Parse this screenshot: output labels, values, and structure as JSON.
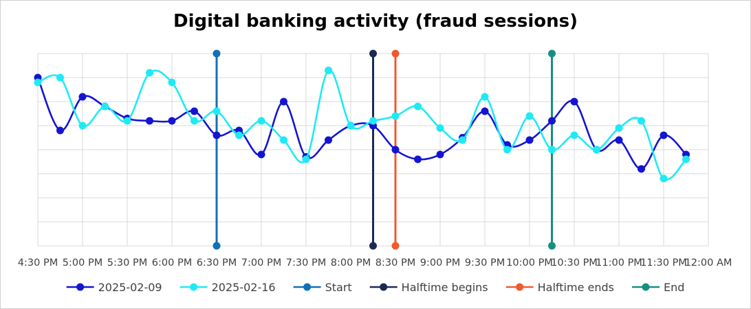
{
  "chart_data": {
    "type": "line",
    "title": "Digital banking activity (fraud sessions)",
    "xlabel": "",
    "ylabel": "",
    "ylim": [
      0,
      8
    ],
    "grid": true,
    "legend_position": "bottom",
    "x_tick_labels": [
      "4:30 PM",
      "5:00 PM",
      "5:30 PM",
      "6:00 PM",
      "6:30 PM",
      "7:00 PM",
      "7:30 PM",
      "8:00 PM",
      "8:30 PM",
      "9:00 PM",
      "9:30 PM",
      "10:00 PM",
      "10:30 PM",
      "11:00 PM",
      "11:30 PM",
      "12:00 AM"
    ],
    "x_start": "4:30 PM",
    "x_step_minutes": 15,
    "series": [
      {
        "name": "2025-02-09",
        "color": "#1414d2",
        "values": [
          7.0,
          4.8,
          6.2,
          5.8,
          5.3,
          5.2,
          5.2,
          5.6,
          4.6,
          4.8,
          3.8,
          6.0,
          3.7,
          4.4,
          5.0,
          5.0,
          4.0,
          3.6,
          3.8,
          4.5,
          5.6,
          4.2,
          4.4,
          5.2,
          6.0,
          4.0,
          4.4,
          3.2,
          4.6,
          3.8
        ]
      },
      {
        "name": "2025-02-16",
        "color": "#1eeaf5",
        "values": [
          6.8,
          7.0,
          5.0,
          5.8,
          5.2,
          7.2,
          6.8,
          5.2,
          5.6,
          4.6,
          5.2,
          4.4,
          3.6,
          7.3,
          5.0,
          5.2,
          5.4,
          5.8,
          4.9,
          4.4,
          6.2,
          4.0,
          5.4,
          4.0,
          4.6,
          4.0,
          4.9,
          5.2,
          2.8,
          3.6
        ]
      }
    ],
    "markers": [
      {
        "name": "Start",
        "color": "#1071b6",
        "x": "6:30 PM"
      },
      {
        "name": "Halftime begins",
        "color": "#1c2954",
        "x": "8:15 PM"
      },
      {
        "name": "Halftime ends",
        "color": "#f05a2c",
        "x": "8:30 PM"
      },
      {
        "name": "End",
        "color": "#168f80",
        "x": "10:15 PM"
      }
    ]
  }
}
